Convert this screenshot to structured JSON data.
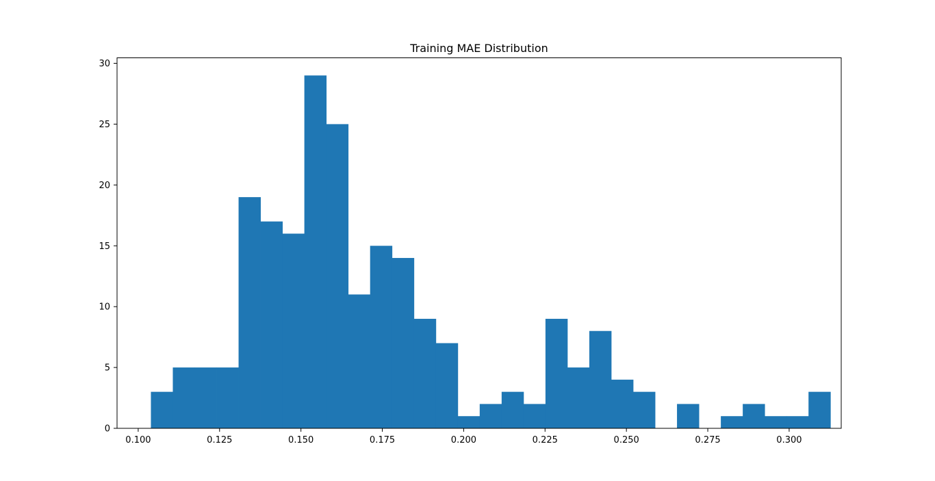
{
  "chart_data": {
    "type": "bar",
    "title": "Training MAE Distribution",
    "xlabel": "",
    "ylabel": "",
    "bar_color": "#1f77b4",
    "xlim": [
      0.0935,
      0.316
    ],
    "ylim": [
      0,
      30.45
    ],
    "x_ticks": [
      0.1,
      0.125,
      0.15,
      0.175,
      0.2,
      0.225,
      0.25,
      0.275,
      0.3
    ],
    "x_tick_labels": [
      "0.100",
      "0.125",
      "0.150",
      "0.175",
      "0.200",
      "0.225",
      "0.250",
      "0.275",
      "0.300"
    ],
    "y_ticks": [
      0,
      5,
      10,
      15,
      20,
      25,
      30
    ],
    "y_tick_labels": [
      "0",
      "5",
      "10",
      "15",
      "20",
      "25",
      "30"
    ],
    "bin_start": 0.1039,
    "bin_width": 0.006735,
    "values": [
      3,
      5,
      5,
      5,
      19,
      17,
      16,
      29,
      25,
      11,
      15,
      14,
      9,
      7,
      1,
      2,
      3,
      2,
      9,
      5,
      8,
      4,
      3,
      0,
      2,
      0,
      1,
      2,
      1,
      1,
      3
    ],
    "grid": false,
    "legend": "none"
  }
}
